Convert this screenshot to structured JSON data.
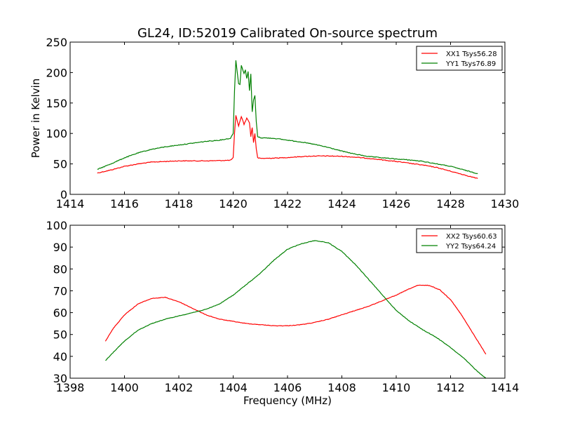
{
  "title": "GL24, ID:52019 Calibrated On-source spectrum",
  "colors": {
    "xx": "#ff0000",
    "yy": "#008000",
    "frame": "#000000"
  },
  "chart_data": [
    {
      "type": "line",
      "title": "GL24, ID:52019 Calibrated On-source spectrum",
      "xlabel": "",
      "ylabel": "Power in Kelvin",
      "xlim": [
        1414,
        1430
      ],
      "ylim": [
        0,
        250
      ],
      "xticks": [
        "1414",
        "1416",
        "1418",
        "1420",
        "1422",
        "1424",
        "1426",
        "1428",
        "1430"
      ],
      "yticks": [
        "0",
        "50",
        "100",
        "150",
        "200",
        "250"
      ],
      "legend_position": "top-right",
      "series": [
        {
          "name": "XX1 Tsys56.28",
          "color": "#ff0000",
          "x": [
            1415,
            1415.5,
            1416,
            1416.5,
            1417,
            1417.5,
            1418,
            1418.5,
            1419,
            1419.5,
            1419.9,
            1420.0,
            1420.05,
            1420.1,
            1420.2,
            1420.3,
            1420.4,
            1420.5,
            1420.6,
            1420.65,
            1420.7,
            1420.75,
            1420.8,
            1420.85,
            1420.9,
            1421,
            1421.5,
            1422,
            1422.5,
            1423,
            1423.5,
            1424,
            1424.5,
            1425,
            1425.5,
            1426,
            1426.5,
            1427,
            1427.5,
            1428,
            1428.5,
            1429
          ],
          "y": [
            35,
            40,
            46,
            50,
            53,
            54,
            55,
            55,
            55,
            55.5,
            56,
            60,
            100,
            130,
            112,
            128,
            115,
            125,
            118,
            95,
            110,
            85,
            100,
            75,
            60,
            59,
            59.5,
            60.5,
            62,
            63,
            63,
            62.5,
            61,
            59,
            56.5,
            54,
            51,
            48,
            44,
            38,
            32,
            26
          ]
        },
        {
          "name": "YY1 Tsys76.89",
          "color": "#008000",
          "x": [
            1415,
            1415.5,
            1416,
            1416.5,
            1417,
            1417.5,
            1418,
            1418.5,
            1419,
            1419.5,
            1419.9,
            1420.0,
            1420.05,
            1420.1,
            1420.2,
            1420.25,
            1420.3,
            1420.4,
            1420.45,
            1420.5,
            1420.55,
            1420.6,
            1420.65,
            1420.7,
            1420.75,
            1420.8,
            1420.85,
            1420.9,
            1421,
            1421.5,
            1422,
            1422.5,
            1423,
            1423.5,
            1424,
            1424.5,
            1425,
            1425.5,
            1426,
            1426.5,
            1427,
            1427.5,
            1428,
            1428.5,
            1429
          ],
          "y": [
            41,
            50,
            60,
            68,
            74,
            78,
            81,
            84,
            87,
            89,
            92,
            100,
            170,
            220,
            182,
            180,
            212,
            198,
            205,
            190,
            202,
            170,
            198,
            135,
            155,
            162,
            120,
            95,
            93,
            92,
            89,
            86,
            82,
            77,
            71,
            66,
            62,
            60,
            58,
            56.5,
            54,
            50,
            46,
            40,
            34
          ]
        }
      ]
    },
    {
      "type": "line",
      "title": "",
      "xlabel": "Frequency (MHz)",
      "ylabel": "",
      "xlim": [
        1398,
        1414
      ],
      "ylim": [
        30,
        100
      ],
      "xticks": [
        "1398",
        "1400",
        "1402",
        "1404",
        "1406",
        "1408",
        "1410",
        "1412",
        "1414"
      ],
      "yticks": [
        "30",
        "40",
        "50",
        "60",
        "70",
        "80",
        "90",
        "100"
      ],
      "legend_position": "top-right",
      "series": [
        {
          "name": "XX2 Tsys60.63",
          "color": "#ff0000",
          "x": [
            1399.3,
            1399.6,
            1400,
            1400.5,
            1401,
            1401.5,
            1402,
            1402.5,
            1403,
            1403.5,
            1404,
            1404.5,
            1405,
            1405.5,
            1406,
            1406.5,
            1407,
            1407.5,
            1408,
            1408.5,
            1409,
            1409.5,
            1410,
            1410.5,
            1410.8,
            1411.2,
            1411.6,
            1412,
            1412.4,
            1412.8,
            1413.3
          ],
          "y": [
            47,
            53,
            59,
            64,
            66.5,
            67,
            65,
            62,
            59,
            57,
            56,
            55,
            54.5,
            54,
            54,
            54.5,
            55.5,
            57,
            59,
            61,
            63,
            65.5,
            68,
            71,
            72.5,
            72.5,
            70.5,
            66,
            59,
            51,
            41
          ]
        },
        {
          "name": "YY2 Tsys64.24",
          "color": "#008000",
          "x": [
            1399.3,
            1399.6,
            1400,
            1400.5,
            1401,
            1401.5,
            1402,
            1402.5,
            1403,
            1403.5,
            1404,
            1404.5,
            1405,
            1405.5,
            1406,
            1406.5,
            1407,
            1407.5,
            1408,
            1408.5,
            1409,
            1409.5,
            1410,
            1410.5,
            1411,
            1411.5,
            1412,
            1412.5,
            1413,
            1413.3
          ],
          "y": [
            38,
            42,
            47,
            52,
            55,
            57,
            58.5,
            60,
            61.5,
            64,
            68,
            73,
            78,
            84,
            89,
            91.5,
            93,
            92,
            88,
            82,
            75,
            68,
            61,
            56,
            52,
            48.5,
            44,
            39,
            33,
            30
          ]
        }
      ]
    }
  ]
}
